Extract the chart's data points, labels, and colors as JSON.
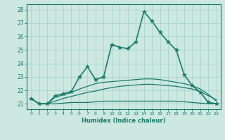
{
  "title": "",
  "xlabel": "Humidex (Indice chaleur)",
  "bg_color": "#cce8e0",
  "line_color": "#1a7a6a",
  "grid_color": "#aad4cc",
  "xlim": [
    -0.5,
    23.5
  ],
  "ylim": [
    20.6,
    28.4
  ],
  "yticks": [
    21,
    22,
    23,
    24,
    25,
    26,
    27,
    28
  ],
  "xticks": [
    0,
    1,
    2,
    3,
    4,
    5,
    6,
    7,
    8,
    9,
    10,
    11,
    12,
    13,
    14,
    15,
    16,
    17,
    18,
    19,
    20,
    21,
    22,
    23
  ],
  "curves": [
    {
      "x": [
        0,
        1,
        2,
        3,
        4,
        5,
        6,
        7,
        8,
        9,
        10,
        11,
        12,
        13,
        14,
        15,
        16,
        17,
        18,
        19,
        20,
        21,
        22,
        23
      ],
      "y": [
        21.4,
        21.0,
        21.0,
        21.0,
        21.05,
        21.1,
        21.1,
        21.1,
        21.15,
        21.2,
        21.2,
        21.2,
        21.2,
        21.2,
        21.2,
        21.2,
        21.2,
        21.2,
        21.2,
        21.15,
        21.1,
        21.05,
        21.0,
        21.0
      ],
      "marker": null,
      "linewidth": 0.9
    },
    {
      "x": [
        0,
        1,
        2,
        3,
        4,
        5,
        6,
        7,
        8,
        9,
        10,
        11,
        12,
        13,
        14,
        15,
        16,
        17,
        18,
        19,
        20,
        21,
        22,
        23
      ],
      "y": [
        21.4,
        21.0,
        21.0,
        21.2,
        21.4,
        21.55,
        21.7,
        21.85,
        21.95,
        22.1,
        22.2,
        22.3,
        22.35,
        22.4,
        22.45,
        22.45,
        22.4,
        22.35,
        22.3,
        22.2,
        22.1,
        21.9,
        21.6,
        21.3
      ],
      "marker": null,
      "linewidth": 0.9
    },
    {
      "x": [
        0,
        1,
        2,
        3,
        4,
        5,
        6,
        7,
        8,
        9,
        10,
        11,
        12,
        13,
        14,
        15,
        16,
        17,
        18,
        19,
        20,
        21,
        22,
        23
      ],
      "y": [
        21.4,
        21.0,
        21.0,
        21.5,
        21.65,
        21.85,
        22.1,
        22.3,
        22.5,
        22.6,
        22.65,
        22.7,
        22.75,
        22.8,
        22.85,
        22.85,
        22.8,
        22.7,
        22.6,
        22.5,
        22.35,
        22.1,
        21.7,
        21.2
      ],
      "marker": null,
      "linewidth": 0.9
    },
    {
      "x": [
        0,
        1,
        2,
        3,
        4,
        5,
        6,
        7,
        8,
        9,
        10,
        11,
        12,
        13,
        14,
        15,
        16,
        17,
        18,
        19,
        20,
        21,
        22,
        23
      ],
      "y": [
        21.4,
        21.0,
        21.0,
        21.6,
        21.75,
        21.9,
        23.0,
        23.75,
        22.8,
        23.0,
        25.4,
        25.2,
        25.1,
        25.6,
        27.85,
        27.15,
        26.3,
        25.6,
        25.0,
        23.15,
        22.35,
        21.85,
        21.1,
        21.0
      ],
      "marker": "*",
      "linewidth": 1.2,
      "markersize": 4
    }
  ]
}
